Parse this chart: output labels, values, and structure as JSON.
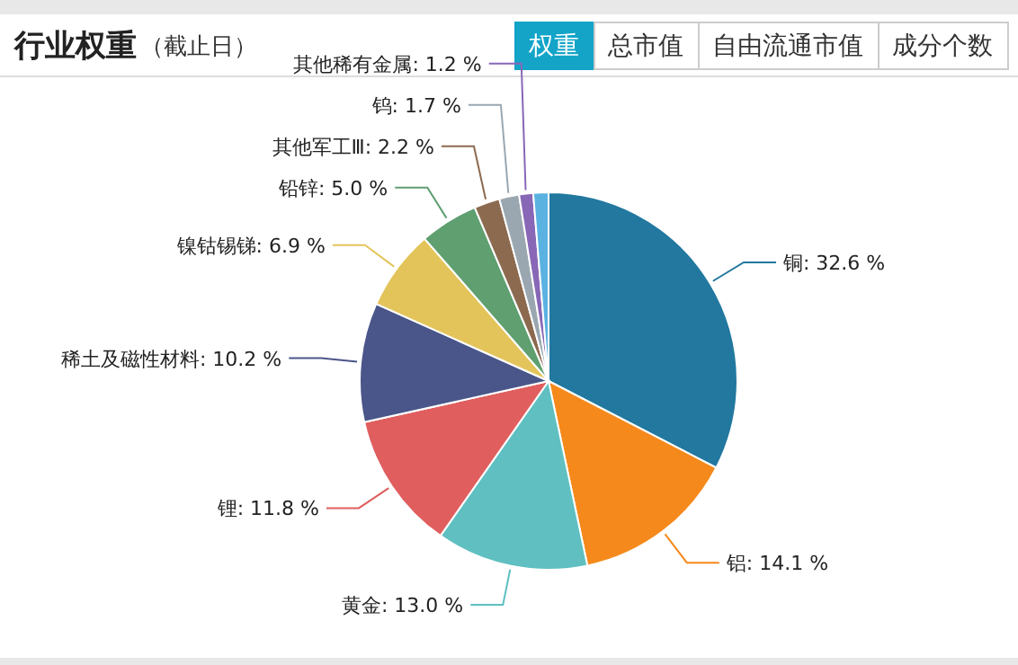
{
  "chart_data": {
    "type": "pie",
    "title": "行业权重",
    "subtitle": "（截止日）",
    "annotations": [
      "权重",
      "总市值",
      "自由流通市值",
      "成分个数"
    ],
    "categories": [
      "铜",
      "铝",
      "黄金",
      "锂",
      "稀土及磁性材料",
      "镍钴锡锑",
      "铅锌",
      "其他军工Ⅲ",
      "钨",
      "其他稀有金属",
      null
    ],
    "values": [
      32.6,
      14.1,
      13.0,
      11.8,
      10.2,
      6.9,
      5.0,
      2.2,
      1.7,
      1.2,
      1.3
    ],
    "value_labels": [
      "32.6 %",
      "14.1 %",
      "13.0 %",
      "11.8 %",
      "10.2 %",
      "6.9 %",
      "5.0 %",
      "2.2 %",
      "1.7 %",
      "1.2 %",
      null
    ],
    "colors": [
      "#22789f",
      "#f5891b",
      "#5fbfc1",
      "#e05e5e",
      "#4a5689",
      "#e3c45a",
      "#5f9f70",
      "#8c6a4f",
      "#9aa7b1",
      "#8767b6",
      "#5ab2e1"
    ]
  }
}
